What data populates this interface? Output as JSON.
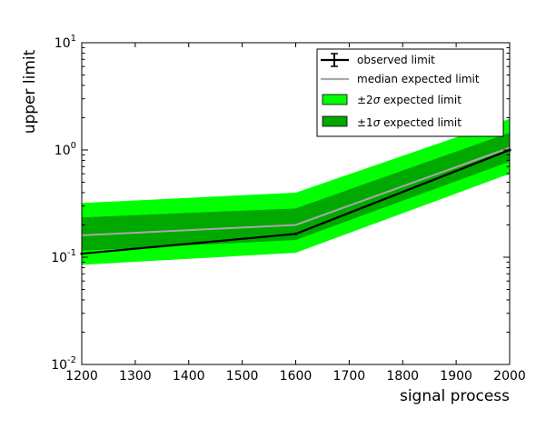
{
  "chart_data": {
    "type": "line",
    "title": "",
    "xlabel": "signal process",
    "ylabel": "upper limit",
    "yscale": "log",
    "xlim": [
      1200,
      2000
    ],
    "ylim": [
      0.01,
      10
    ],
    "x": [
      1200,
      1600,
      2000
    ],
    "x_ticks": [
      "1200",
      "1300",
      "1400",
      "1500",
      "1600",
      "1700",
      "1800",
      "1900",
      "2000"
    ],
    "y_ticks": [
      {
        "base": "10",
        "exp": "-2",
        "value": 0.01
      },
      {
        "base": "10",
        "exp": "-1",
        "value": 0.1
      },
      {
        "base": "10",
        "exp": "0",
        "value": 1
      },
      {
        "base": "10",
        "exp": "1",
        "value": 10
      }
    ],
    "observed": [
      0.108,
      0.165,
      1.0
    ],
    "median": [
      0.16,
      0.2,
      1.05
    ],
    "band_1sigma": {
      "low": [
        0.115,
        0.145,
        0.78
      ],
      "high": [
        0.235,
        0.285,
        1.45
      ]
    },
    "band_2sigma": {
      "low": [
        0.085,
        0.11,
        0.6
      ],
      "high": [
        0.32,
        0.4,
        1.95
      ]
    },
    "legend": {
      "position": "top-right",
      "observed": "observed limit",
      "median": "median expected limit",
      "band2_prefix": "±2",
      "band2_suffix": " expected limit",
      "band1_prefix": "±1",
      "band1_suffix": " expected limit",
      "sigma": "σ"
    },
    "colors": {
      "band_2sigma": "#00ff00",
      "band_1sigma": "#00a800",
      "median": "#a8a8a8",
      "observed": "#000000"
    }
  }
}
